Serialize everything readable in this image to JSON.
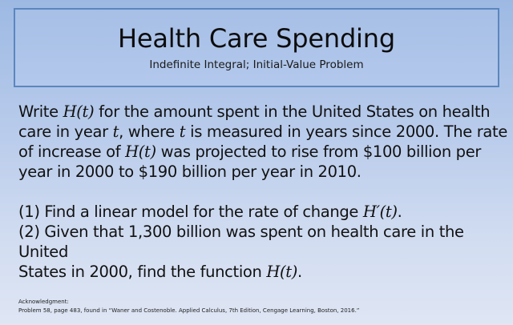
{
  "slide": {
    "title": "Health Care Spending",
    "subtitle": "Indefinite Integral; Initial-Value Problem",
    "colors": {
      "background_top": "#9db9e3",
      "background_bottom": "#dfe6f4",
      "title_box_border": "#5b86bf",
      "text": "#111111"
    }
  },
  "problem": {
    "line1_a": "Write ",
    "line1_math": "H(t)",
    "line1_b": " for the amount spent in the United States on health",
    "line2_a": "care in year ",
    "line2_math1": "t",
    "line2_b": ", where ",
    "line2_math2": "t",
    "line2_c": " is measured in years since 2000. The rate",
    "line3_a": "of increase of ",
    "line3_math": "H(t)",
    "line3_b": " was projected to rise from $100 billion per",
    "line4": "year in 2000 to $190 billion per year in 2010."
  },
  "questions": {
    "q1_a": "(1) Find a linear model for the rate of change ",
    "q1_math": "H′(t)",
    "q1_b": ".",
    "q2_line1": "(2) Given that 1,300 billion was spent on health care in the United",
    "q2_line2_a": "States in 2000, find the function ",
    "q2_line2_math": "H(t)",
    "q2_line2_b": "."
  },
  "acknowledgment": {
    "label": "Acknowledgment:",
    "text": "Problem 58, page 483, found in “Waner and Costenoble. Applied Calculus, 7th Edition, Cengage Learning, Boston, 2016.”"
  }
}
